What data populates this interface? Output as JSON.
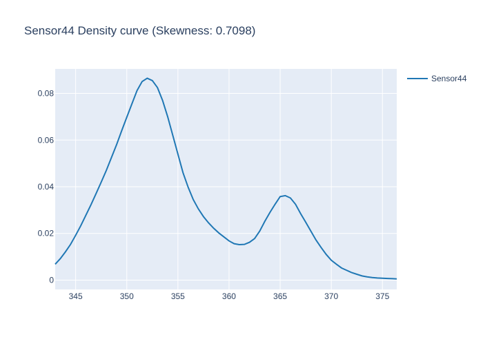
{
  "chart_data": {
    "type": "line",
    "title": "Sensor44 Density curve (Skewness: 0.7098)",
    "xlabel": "",
    "ylabel": "",
    "xlim": [
      343.0,
      376.4
    ],
    "ylim": [
      -0.004,
      0.0905
    ],
    "x_ticks": [
      345,
      350,
      355,
      360,
      365,
      370,
      375
    ],
    "x_tick_labels": [
      "345",
      "350",
      "355",
      "360",
      "365",
      "370",
      "375"
    ],
    "y_ticks": [
      0,
      0.02,
      0.04,
      0.06,
      0.08
    ],
    "y_tick_labels": [
      "0",
      "0.02",
      "0.04",
      "0.06",
      "0.08"
    ],
    "grid": true,
    "legend_position": "top-right",
    "colors": {
      "plot_bg": "#e5ecf6",
      "line": "#1f77b4",
      "text": "#2a3f5f"
    },
    "series": [
      {
        "name": "Sensor44",
        "x": [
          343.0,
          343.5,
          344.0,
          344.5,
          345.0,
          345.5,
          346.0,
          346.5,
          347.0,
          347.5,
          348.0,
          348.5,
          349.0,
          349.5,
          350.0,
          350.5,
          351.0,
          351.5,
          352.0,
          352.5,
          353.0,
          353.5,
          354.0,
          354.5,
          355.0,
          355.5,
          356.0,
          356.5,
          357.0,
          357.5,
          358.0,
          358.5,
          359.0,
          359.5,
          360.0,
          360.5,
          361.0,
          361.5,
          362.0,
          362.5,
          363.0,
          363.5,
          364.0,
          364.5,
          365.0,
          365.5,
          366.0,
          366.5,
          367.0,
          367.5,
          368.0,
          368.5,
          369.0,
          369.5,
          370.0,
          370.5,
          371.0,
          371.5,
          372.0,
          372.5,
          373.0,
          373.5,
          374.0,
          374.5,
          375.0,
          375.5,
          376.0,
          376.4
        ],
        "y": [
          0.0068,
          0.0092,
          0.0121,
          0.0153,
          0.0192,
          0.0233,
          0.0278,
          0.0323,
          0.0371,
          0.042,
          0.047,
          0.0525,
          0.058,
          0.064,
          0.0698,
          0.0755,
          0.0812,
          0.0851,
          0.0865,
          0.0855,
          0.0825,
          0.077,
          0.07,
          0.062,
          0.054,
          0.046,
          0.0398,
          0.0345,
          0.0305,
          0.0272,
          0.0245,
          0.0222,
          0.0202,
          0.0185,
          0.0168,
          0.0156,
          0.0152,
          0.0153,
          0.0162,
          0.0178,
          0.021,
          0.0252,
          0.029,
          0.0325,
          0.0358,
          0.0362,
          0.0352,
          0.0325,
          0.0285,
          0.0248,
          0.021,
          0.0172,
          0.014,
          0.011,
          0.0085,
          0.0068,
          0.0052,
          0.0042,
          0.0032,
          0.0025,
          0.0018,
          0.0014,
          0.0011,
          0.0009,
          0.0008,
          0.0007,
          0.0006,
          0.0005
        ]
      }
    ]
  }
}
